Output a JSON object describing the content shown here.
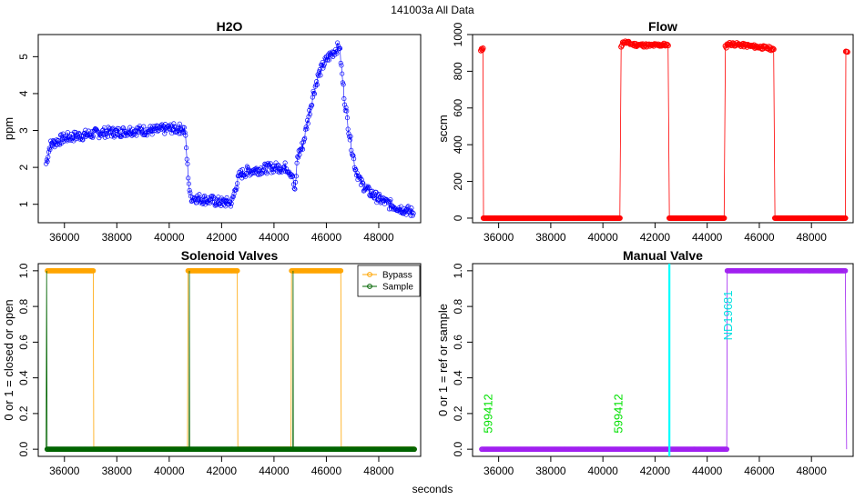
{
  "figure": {
    "title": "141003a   All Data",
    "xlabel": "seconds",
    "x_ticks": [
      "36000",
      "38000",
      "40000",
      "42000",
      "44000",
      "46000",
      "48000"
    ]
  },
  "chart_data": [
    {
      "id": "h2o",
      "type": "scatter",
      "title": "H2O",
      "xlabel": "",
      "ylabel": "ppm",
      "xlim": [
        35000,
        49600
      ],
      "ylim": [
        0.5,
        5.6
      ],
      "x_ticks": [
        36000,
        38000,
        40000,
        42000,
        44000,
        46000,
        48000
      ],
      "y_ticks": [
        1,
        2,
        3,
        4,
        5
      ],
      "color": "#0000ff",
      "series": [
        {
          "name": "H2O",
          "points": [
            [
              35300,
              2.1
            ],
            [
              35450,
              2.6
            ],
            [
              35700,
              2.7
            ],
            [
              36000,
              2.8
            ],
            [
              36500,
              2.85
            ],
            [
              37000,
              2.9
            ],
            [
              37500,
              2.95
            ],
            [
              38000,
              2.95
            ],
            [
              38500,
              3.0
            ],
            [
              39000,
              3.0
            ],
            [
              39500,
              3.0
            ],
            [
              40000,
              3.05
            ],
            [
              40500,
              3.05
            ],
            [
              40600,
              3.0
            ],
            [
              40700,
              2.0
            ],
            [
              40800,
              1.2
            ],
            [
              41200,
              1.15
            ],
            [
              41600,
              1.1
            ],
            [
              42000,
              1.05
            ],
            [
              42400,
              1.05
            ],
            [
              42550,
              1.5
            ],
            [
              42700,
              1.8
            ],
            [
              43000,
              1.9
            ],
            [
              43500,
              1.95
            ],
            [
              44000,
              2.0
            ],
            [
              44500,
              2.0
            ],
            [
              44700,
              1.8
            ],
            [
              44800,
              1.3
            ],
            [
              44900,
              2.3
            ],
            [
              45100,
              2.6
            ],
            [
              45300,
              3.3
            ],
            [
              45500,
              4.0
            ],
            [
              45700,
              4.5
            ],
            [
              45900,
              4.8
            ],
            [
              46100,
              5.0
            ],
            [
              46300,
              5.15
            ],
            [
              46500,
              5.3
            ],
            [
              46600,
              4.5
            ],
            [
              46700,
              3.8
            ],
            [
              46900,
              2.8
            ],
            [
              47100,
              2.0
            ],
            [
              47300,
              1.6
            ],
            [
              47600,
              1.35
            ],
            [
              48000,
              1.15
            ],
            [
              48400,
              1.0
            ],
            [
              48800,
              0.9
            ],
            [
              49200,
              0.8
            ],
            [
              49350,
              0.75
            ]
          ]
        }
      ]
    },
    {
      "id": "flow",
      "type": "scatter",
      "title": "Flow",
      "xlabel": "",
      "ylabel": "sccm",
      "xlim": [
        35000,
        49600
      ],
      "ylim": [
        -25,
        1000
      ],
      "x_ticks": [
        36000,
        38000,
        40000,
        42000,
        44000,
        46000,
        48000
      ],
      "y_ticks": [
        0,
        200,
        400,
        600,
        800,
        1000
      ],
      "color": "#ff0000",
      "series": [
        {
          "name": "Flow",
          "segments": [
            [
              [
                35320,
                910
              ],
              [
                35400,
                925
              ]
            ],
            [
              [
                35420,
                0
              ],
              [
                40650,
                0
              ]
            ],
            [
              [
                40700,
                940
              ],
              [
                40800,
                960
              ],
              [
                41200,
                945
              ],
              [
                41800,
                940
              ],
              [
                42400,
                945
              ],
              [
                42500,
                940
              ]
            ],
            [
              [
                42550,
                0
              ],
              [
                44650,
                0
              ]
            ],
            [
              [
                44700,
                930
              ],
              [
                44800,
                950
              ],
              [
                45200,
                945
              ],
              [
                45800,
                935
              ],
              [
                46400,
                925
              ],
              [
                46550,
                920
              ]
            ],
            [
              [
                46600,
                0
              ],
              [
                49300,
                0
              ]
            ],
            [
              [
                49320,
                900
              ],
              [
                49380,
                905
              ]
            ]
          ]
        }
      ]
    },
    {
      "id": "solenoid",
      "type": "line",
      "title": "Solenoid Valves",
      "xlabel": "",
      "ylabel": "0 or 1 = closed or open",
      "xlim": [
        35000,
        49600
      ],
      "ylim": [
        -0.04,
        1.04
      ],
      "x_ticks": [
        36000,
        38000,
        40000,
        42000,
        44000,
        46000,
        48000
      ],
      "y_ticks": [
        0.0,
        0.2,
        0.4,
        0.6,
        0.8,
        1.0
      ],
      "legend": "top-right",
      "series": [
        {
          "name": "Bypass",
          "color": "#ffa500",
          "points": [
            [
              35350,
              1
            ],
            [
              37100,
              1
            ],
            [
              37120,
              0
            ],
            [
              40700,
              0
            ],
            [
              40720,
              1
            ],
            [
              42600,
              1
            ],
            [
              42620,
              0
            ],
            [
              44650,
              0
            ],
            [
              44670,
              1
            ],
            [
              46550,
              1
            ],
            [
              46570,
              0
            ],
            [
              49350,
              0
            ]
          ]
        },
        {
          "name": "Sample",
          "color": "#006400",
          "points": [
            [
              35300,
              0
            ],
            [
              35320,
              1
            ],
            [
              35340,
              0
            ],
            [
              40760,
              0
            ],
            [
              40770,
              1
            ],
            [
              40780,
              0
            ],
            [
              44720,
              0
            ],
            [
              44730,
              1
            ],
            [
              44740,
              0
            ],
            [
              49360,
              0
            ]
          ]
        }
      ]
    },
    {
      "id": "manual",
      "type": "line",
      "title": "Manual Valve",
      "xlabel": "",
      "ylabel": "0 or 1 = ref or sample",
      "xlim": [
        35000,
        49600
      ],
      "ylim": [
        -0.04,
        1.04
      ],
      "x_ticks": [
        36000,
        38000,
        40000,
        42000,
        44000,
        46000,
        48000
      ],
      "y_ticks": [
        0.0,
        0.2,
        0.4,
        0.6,
        0.8,
        1.0
      ],
      "series": [
        {
          "name": "Manual",
          "color": "#a020f0",
          "points": [
            [
              35350,
              0
            ],
            [
              44750,
              0
            ],
            [
              44770,
              1
            ],
            [
              49300,
              1
            ],
            [
              49350,
              0
            ]
          ]
        }
      ],
      "vline": {
        "x": 42550,
        "color": "#00ffff"
      },
      "annotations": [
        {
          "text": "599412",
          "x": 35750,
          "y": 0.2,
          "color": "#00e000"
        },
        {
          "text": "599412",
          "x": 40750,
          "y": 0.2,
          "color": "#00e000"
        },
        {
          "text": "ND19681",
          "x": 44950,
          "y": 0.75,
          "color": "#00e0e0"
        }
      ]
    }
  ]
}
